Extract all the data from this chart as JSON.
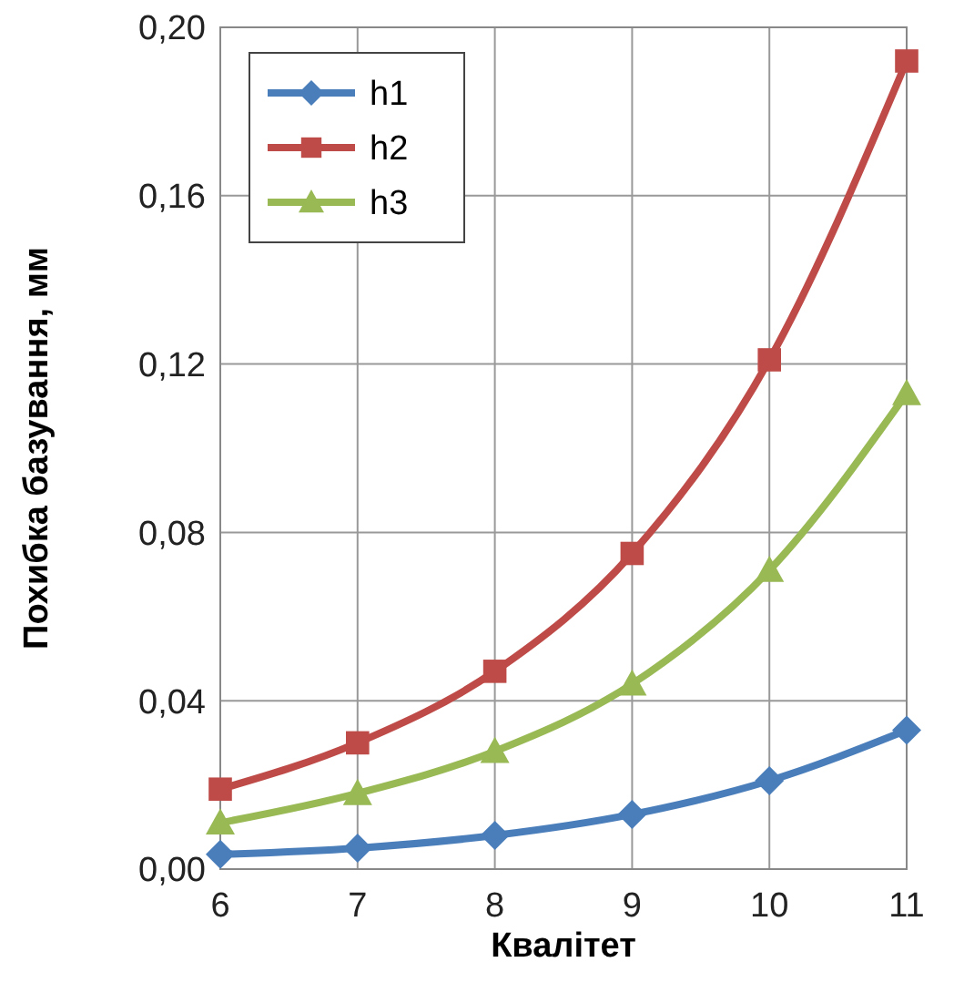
{
  "chart_data": {
    "type": "line",
    "xlabel": "Квалітет",
    "ylabel": "Похибка базування, мм",
    "x": [
      6,
      7,
      8,
      9,
      10,
      11
    ],
    "series": [
      {
        "name": "h1",
        "color": "#4a7ebb",
        "marker": "diamond",
        "values": [
          0.0035,
          0.005,
          0.008,
          0.013,
          0.021,
          0.033
        ]
      },
      {
        "name": "h2",
        "color": "#be4b48",
        "marker": "square",
        "values": [
          0.019,
          0.03,
          0.047,
          0.075,
          0.121,
          0.192
        ]
      },
      {
        "name": "h3",
        "color": "#98b954",
        "marker": "triangle",
        "values": [
          0.011,
          0.018,
          0.028,
          0.044,
          0.071,
          0.113
        ]
      }
    ],
    "xlim": [
      6,
      11
    ],
    "xticks": [
      6,
      7,
      8,
      9,
      10,
      11
    ],
    "ylim": [
      0,
      0.2
    ],
    "yticks": [
      {
        "value": 0,
        "label": "0,00"
      },
      {
        "value": 0.04,
        "label": "0,04"
      },
      {
        "value": 0.08,
        "label": "0,08"
      },
      {
        "value": 0.12,
        "label": "0,12"
      },
      {
        "value": 0.16,
        "label": "0,16"
      },
      {
        "value": 0.2,
        "label": "0,20"
      }
    ],
    "grid": true,
    "legend": "top left",
    "line_style": "solid"
  }
}
